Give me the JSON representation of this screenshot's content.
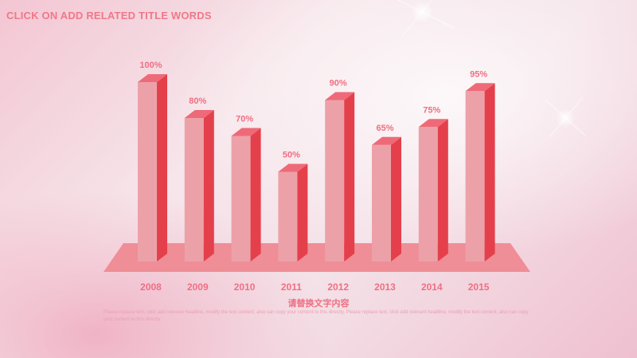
{
  "header": {
    "title": "CLICK ON ADD RELATED TITLE WORDS"
  },
  "chart_data": {
    "type": "bar",
    "categories": [
      "2008",
      "2009",
      "2010",
      "2011",
      "2012",
      "2013",
      "2014",
      "2015"
    ],
    "values": [
      100,
      80,
      70,
      50,
      90,
      65,
      75,
      95
    ],
    "labels": [
      "100%",
      "80%",
      "70%",
      "50%",
      "90%",
      "65%",
      "75%",
      "95%"
    ],
    "ylim": [
      0,
      100
    ],
    "grid": false,
    "colors": {
      "front": "#eca1a8",
      "side": "#e4404c",
      "top": "#ee6a78",
      "floor": "#ef8e97",
      "label": "#ef6f83"
    }
  },
  "caption": "请替换文字内容",
  "description": "Please replace text, click add relevant headline, modify the text content, also can copy your content to this directly. Please replace text, click add relevant headline, modify the text content, also can copy your content to this directly."
}
